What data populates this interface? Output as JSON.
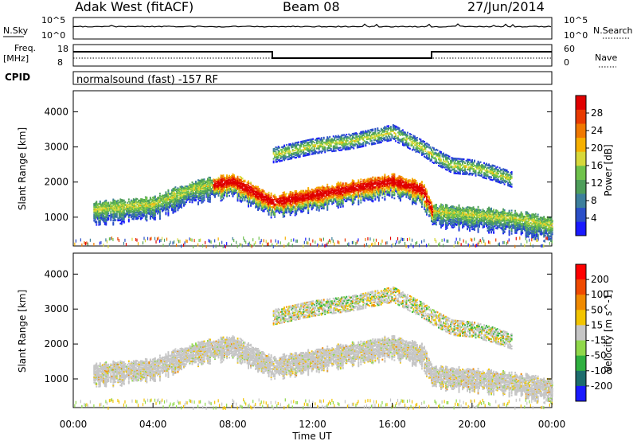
{
  "header": {
    "station": "Adak West (fitACF)",
    "beam": "Beam 08",
    "date": "27/Jun/2014"
  },
  "top_panels": {
    "nsky_label": "N.Sky",
    "nsky_ticks": [
      "10^5",
      "10^0"
    ],
    "nsearch_label": "N.Search",
    "nsearch_ticks": [
      "10^5",
      "10^0"
    ],
    "freq_label_line1": "Freq.",
    "freq_label_line2": "[MHz]",
    "freq_ticks": [
      "18",
      "8"
    ],
    "nave_label": "Nave",
    "nave_ticks": [
      "60",
      "0"
    ],
    "cpid_label": "CPID",
    "cpid_text": "normalsound (fast) -157 RF"
  },
  "chart_data": [
    {
      "type": "heatmap",
      "panel": "power",
      "ylabel": "Slant Range [km]",
      "xlabel": "Time UT",
      "x_ticks": [
        "00:00",
        "04:00",
        "08:00",
        "12:00",
        "16:00",
        "20:00",
        "00:00"
      ],
      "y_ticks": [
        "1000",
        "2000",
        "3000",
        "4000"
      ],
      "ylim": [
        180,
        4600
      ],
      "xlim_hours": [
        0,
        24
      ],
      "colorbar": {
        "label": "Power [dB]",
        "ticks": [
          "4",
          "8",
          "12",
          "16",
          "20",
          "24",
          "28"
        ],
        "range": [
          0,
          30
        ],
        "colors": [
          "#1a1aff",
          "#2b4fc8",
          "#3d7f9c",
          "#4e9e5a",
          "#6fc24b",
          "#d7d83a",
          "#f6b000",
          "#f07800",
          "#e93a00",
          "#e00000"
        ]
      },
      "bands": [
        {
          "name": "main",
          "points": [
            [
              1,
              1250
            ],
            [
              4,
              1400
            ],
            [
              6,
              1850
            ],
            [
              8,
              2050
            ],
            [
              9.5,
              1600
            ],
            [
              10,
              1450
            ],
            [
              12,
              1650
            ],
            [
              14,
              1850
            ],
            [
              16,
              2050
            ],
            [
              17.5,
              1800
            ],
            [
              18,
              1200
            ],
            [
              20,
              1100
            ],
            [
              22,
              1000
            ],
            [
              24,
              800
            ]
          ]
        },
        {
          "name": "upper",
          "points": [
            [
              10,
              2800
            ],
            [
              12,
              3050
            ],
            [
              14,
              3200
            ],
            [
              16,
              3450
            ],
            [
              17.5,
              3000
            ],
            [
              18,
              2800
            ],
            [
              19,
              2500
            ],
            [
              20,
              2450
            ],
            [
              21,
              2300
            ],
            [
              22,
              2100
            ]
          ]
        }
      ]
    },
    {
      "type": "heatmap",
      "panel": "velocity",
      "ylabel": "Slant Range [km]",
      "xlabel": "Time UT",
      "x_ticks": [
        "00:00",
        "04:00",
        "08:00",
        "12:00",
        "16:00",
        "20:00",
        "00:00"
      ],
      "y_ticks": [
        "1000",
        "2000",
        "3000",
        "4000"
      ],
      "ylim": [
        180,
        4600
      ],
      "xlim_hours": [
        0,
        24
      ],
      "colorbar": {
        "label": "Velocity [m s^-1]",
        "ticks": [
          "200",
          "100",
          "50",
          "15",
          "-15",
          "-50",
          "-100",
          "-200"
        ],
        "range": [
          -250,
          250
        ],
        "colors": [
          "#ff0000",
          "#f04a00",
          "#f08a00",
          "#f2c400",
          "#c6c6c6",
          "#90d84a",
          "#2fb040",
          "#1d6d6d",
          "#1a1aff"
        ]
      }
    }
  ],
  "time_axis": {
    "label": "Time UT",
    "ticks": [
      "00:00",
      "04:00",
      "08:00",
      "12:00",
      "16:00",
      "20:00",
      "00:00"
    ]
  }
}
